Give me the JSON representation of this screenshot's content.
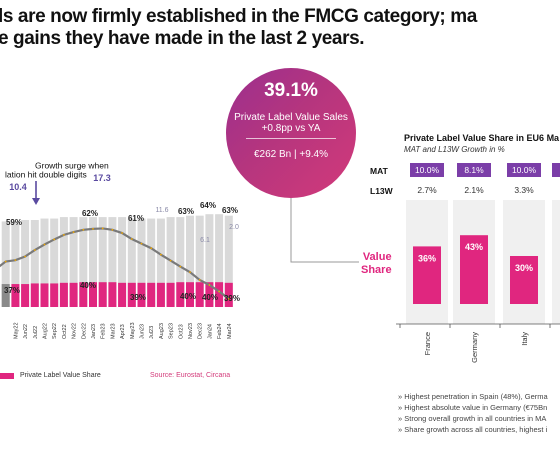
{
  "headline": {
    "line1": "ls are now firmly established in the FMCG category; ma",
    "line2": "e gains they have made in the last 2 years."
  },
  "kpi": {
    "value": "39.1%",
    "label": "Private Label Value Sales",
    "change": "+0.8pp  vs YA",
    "footer": "€262 Bn  |  +9.4%"
  },
  "colors": {
    "pink": "#e0267f",
    "purple": "#7b3ea8",
    "grey": "#d9d9d9",
    "line": "#7a7a7a",
    "dots": "#f2a900"
  },
  "left_chart": {
    "annotation_line1": "Growth surge when",
    "annotation_line2": "lation hit double digits",
    "legend_label": "Private Label Value Share",
    "source": "Source: Eurostat, Circana"
  },
  "right_chart": {
    "title": "Private Label Value Share in EU6 Ma",
    "subtitle": "MAT and L13W Growth in %",
    "mat_label": "MAT",
    "l13w_label": "L13W",
    "value_share_line1": "Value",
    "value_share_line2": "Share"
  },
  "bullets": [
    "» Highest penetration in Spain (48%), Germa",
    "» Highest absolute value in Germany (€75Bn",
    "» Strong overall growth in all countries in MA",
    "» Share growth across all countries, highest i"
  ],
  "chart_data": [
    {
      "type": "bar",
      "categories": [
        "",
        "",
        "May22",
        "Jun22",
        "Jul22",
        "Aug22",
        "Sep22",
        "Oct22",
        "Nov22",
        "Dec22",
        "Jan23",
        "Feb23",
        "Mar23",
        "Apr23",
        "May23",
        "Jun23",
        "Jul23",
        "Aug23",
        "Sep23",
        "Oct23",
        "Nov23",
        "Dec23",
        "Jan24",
        "Feb24",
        "Mar24"
      ],
      "series": [
        {
          "kind": "share_bar",
          "values": [
            37,
            37,
            37,
            37,
            38,
            38,
            38,
            39,
            39,
            40,
            40,
            40,
            40,
            39,
            39,
            39,
            39,
            39,
            39,
            40,
            40,
            40,
            40,
            40,
            39
          ]
        },
        {
          "kind": "grey_bar",
          "values": [
            58,
            59,
            59,
            60,
            60,
            61,
            61,
            62,
            62,
            62,
            62,
            62,
            62,
            62,
            61,
            61,
            61,
            61,
            62,
            62,
            63,
            63,
            64,
            64,
            63
          ]
        },
        {
          "kind": "inflation_line",
          "values": [
            8.5,
            10.1,
            10.4,
            11.2,
            12.6,
            13.8,
            14.9,
            15.9,
            16.5,
            17.0,
            17.2,
            17.3,
            17.0,
            16.3,
            15.0,
            14.0,
            13.0,
            11.6,
            10.3,
            9.0,
            7.8,
            6.1,
            5.0,
            3.6,
            2.0
          ]
        }
      ],
      "bar_labels": [
        "37%",
        "59%",
        "62%",
        "40%",
        "61%",
        "39%",
        "63%",
        "40%",
        "64%",
        "40%",
        "63%",
        "39%"
      ],
      "line_labels": [
        "10.4",
        "17.3",
        "11.6",
        "6.1",
        "2.0"
      ]
    },
    {
      "type": "bar",
      "categories": [
        "France",
        "Germany",
        "Italy"
      ],
      "values": [
        36,
        43,
        30
      ],
      "value_labels": [
        "36%",
        "43%",
        "30%"
      ],
      "mat_growth": [
        "10.0%",
        "8.1%",
        "10.0%"
      ],
      "l13w_growth": [
        "2.7%",
        "2.1%",
        "3.3%"
      ]
    }
  ]
}
